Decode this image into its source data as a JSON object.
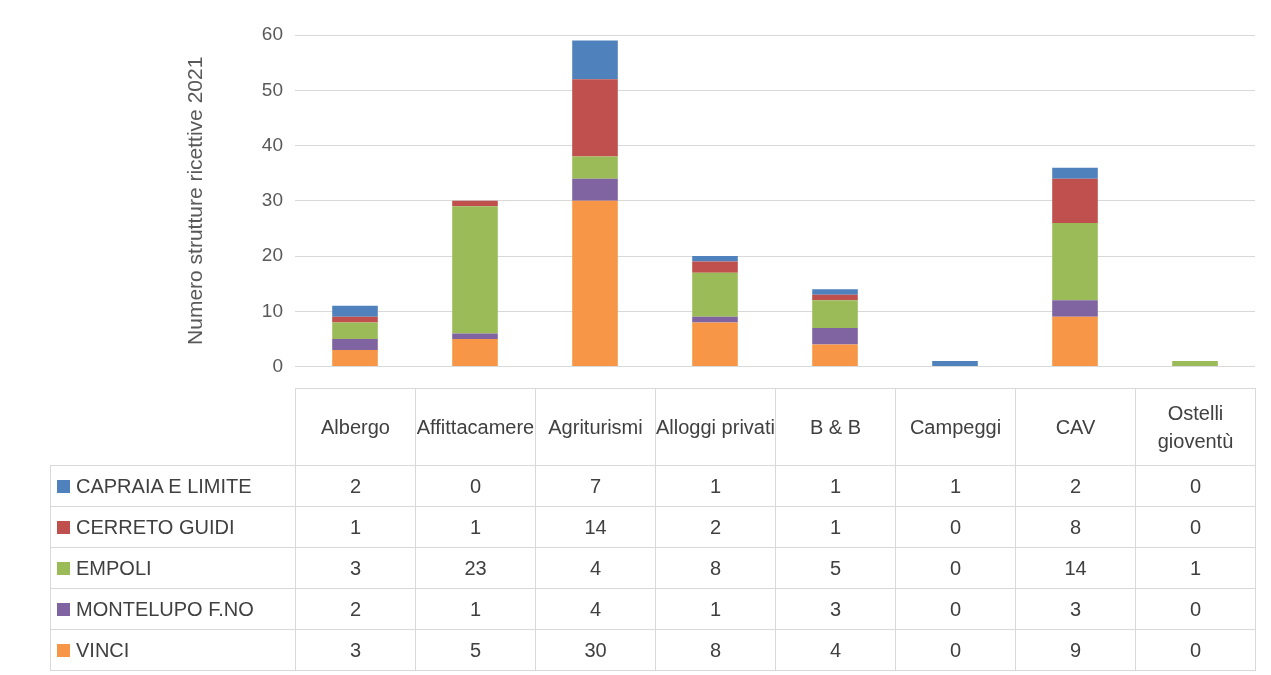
{
  "chart_data": {
    "type": "bar",
    "stacked": true,
    "ylabel": "Numero strutture ricettive 2021",
    "categories": [
      "Albergo",
      "Affittacamere",
      "Agriturismi",
      "Alloggi privati",
      "B & B",
      "Campeggi",
      "CAV",
      "Ostelli gioventù"
    ],
    "series": [
      {
        "name": "VINCI",
        "color": "#f79646",
        "values": [
          3,
          5,
          30,
          8,
          4,
          0,
          9,
          0
        ]
      },
      {
        "name": "MONTELUPO F.NO",
        "color": "#8064a2",
        "values": [
          2,
          1,
          4,
          1,
          3,
          0,
          3,
          0
        ]
      },
      {
        "name": "EMPOLI",
        "color": "#9bbb59",
        "values": [
          3,
          23,
          4,
          8,
          5,
          0,
          14,
          1
        ]
      },
      {
        "name": "CERRETO GUIDI",
        "color": "#c0504d",
        "values": [
          1,
          1,
          14,
          2,
          1,
          0,
          8,
          0
        ]
      },
      {
        "name": "CAPRAIA E LIMITE",
        "color": "#4f81bd",
        "values": [
          2,
          0,
          7,
          1,
          1,
          1,
          2,
          0
        ]
      }
    ],
    "ylim": [
      0,
      60
    ],
    "yticks": [
      0,
      10,
      20,
      30,
      40,
      50,
      60
    ],
    "grid": "y",
    "legend": "bottom",
    "data_labels": true
  }
}
